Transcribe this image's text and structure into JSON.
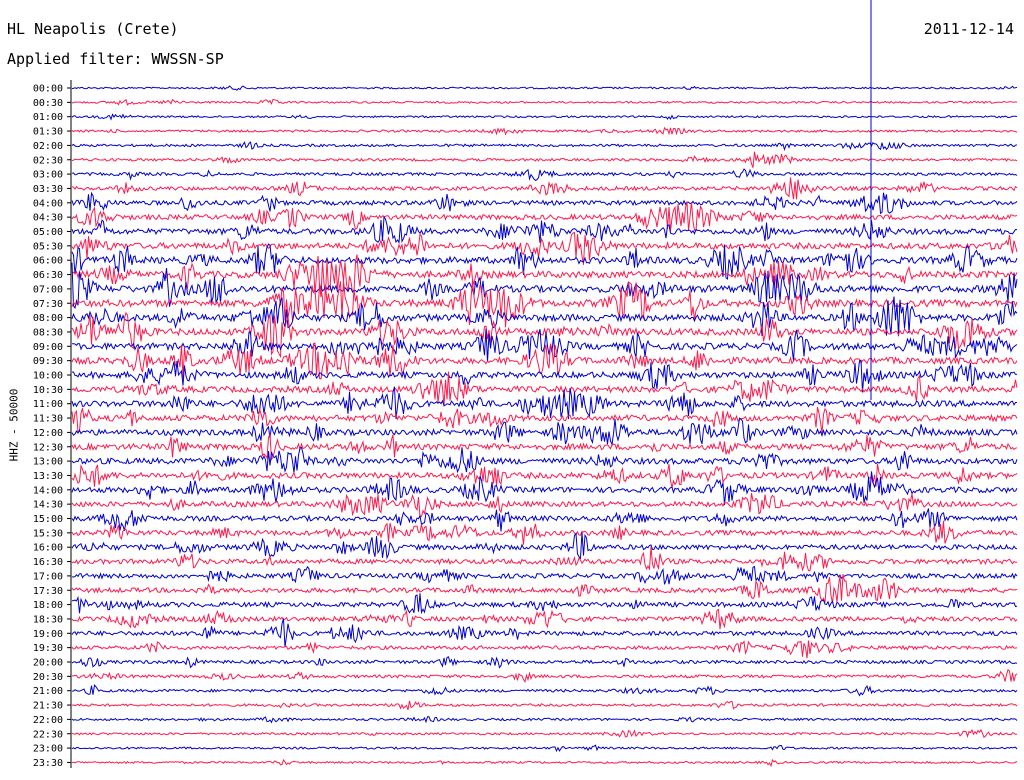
{
  "header": {
    "station": "HL Neapolis (Crete)",
    "filter": "Applied filter: WWSSN-SP",
    "date": "2011-12-14"
  },
  "chart_data": {
    "type": "line",
    "ylabel": "HHZ - 50000",
    "time_labels": [
      "00:00",
      "00:30",
      "01:00",
      "01:30",
      "02:00",
      "02:30",
      "03:00",
      "03:30",
      "04:00",
      "04:30",
      "05:00",
      "05:30",
      "06:00",
      "06:30",
      "07:00",
      "07:30",
      "08:00",
      "08:30",
      "09:00",
      "09:30",
      "10:00",
      "10:30",
      "11:00",
      "11:30",
      "12:00",
      "12:30",
      "13:00",
      "13:30",
      "14:00",
      "14:30",
      "15:00",
      "15:30",
      "16:00",
      "16:30",
      "17:00",
      "17:30",
      "18:00",
      "18:30",
      "19:00",
      "19:30",
      "20:00",
      "20:30",
      "21:00",
      "21:30",
      "22:00",
      "22:30",
      "23:00",
      "23:30"
    ],
    "trace_colors": [
      "#0000cc",
      "#ff1a4d"
    ],
    "activity": [
      0.08,
      0.1,
      0.1,
      0.16,
      0.2,
      0.22,
      0.26,
      0.4,
      0.5,
      0.58,
      0.66,
      0.74,
      0.82,
      0.84,
      0.86,
      0.88,
      0.86,
      0.84,
      0.82,
      0.8,
      0.76,
      0.74,
      0.74,
      0.72,
      0.72,
      0.72,
      0.7,
      0.7,
      0.66,
      0.62,
      0.6,
      0.6,
      0.58,
      0.56,
      0.54,
      0.54,
      0.54,
      0.52,
      0.48,
      0.36,
      0.32,
      0.28,
      0.24,
      0.2,
      0.16,
      0.14,
      0.12,
      0.12
    ]
  }
}
